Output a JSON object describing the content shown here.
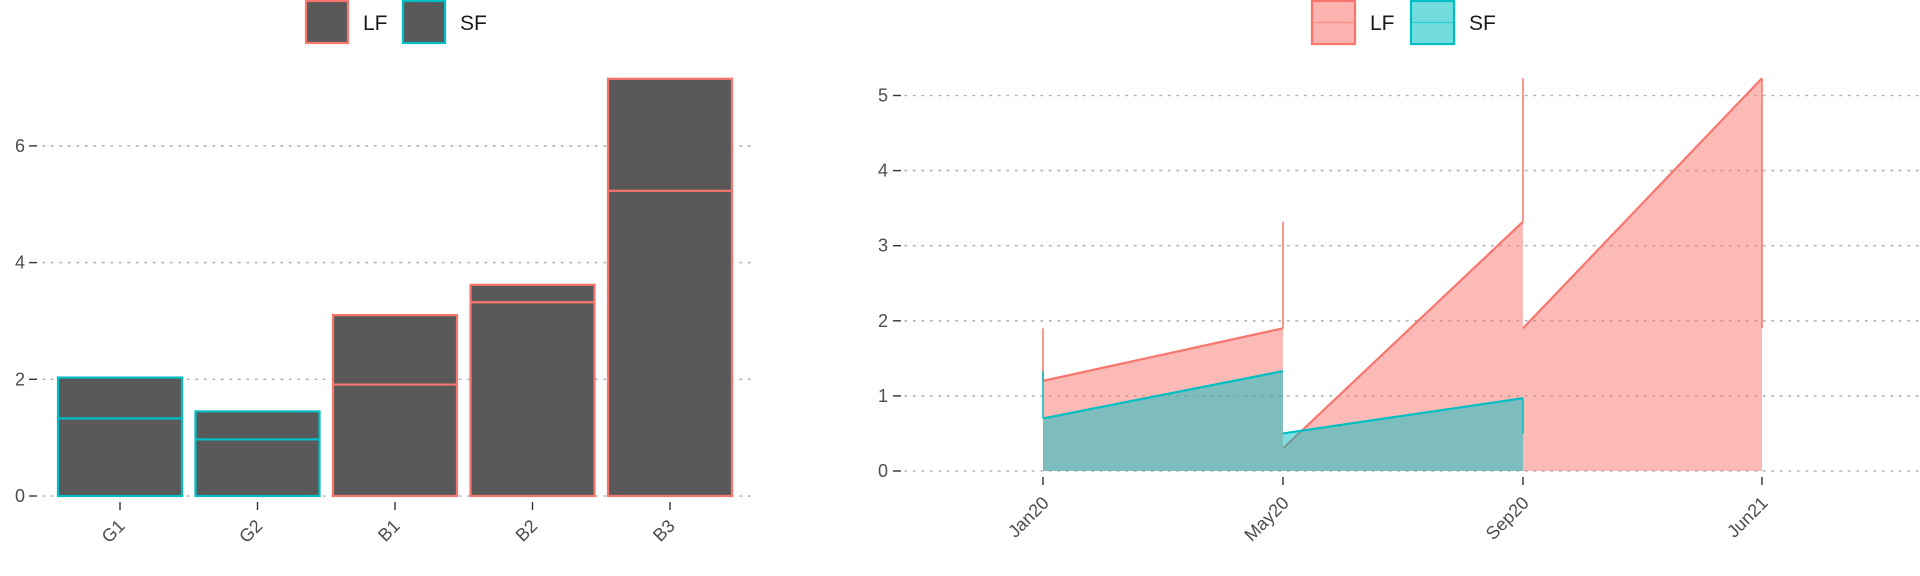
{
  "colors": {
    "LF": "#F8766D",
    "SF": "#00BFC4",
    "bar_fill": "#595959",
    "lf_area": "#F8766D",
    "sf_area": "#00BFC4"
  },
  "chart_data": [
    {
      "type": "bar",
      "title": "",
      "xlabel": "",
      "ylabel": "",
      "legend": {
        "position": "top",
        "entries": [
          "LF",
          "SF"
        ]
      },
      "categories": [
        "G1",
        "G2",
        "B1",
        "B2",
        "B3"
      ],
      "bar_totals": [
        2.03,
        1.45,
        3.1,
        3.62,
        7.15
      ],
      "bar_outline_series": [
        "SF",
        "SF",
        "LF",
        "LF",
        "LF"
      ],
      "inner_line_values": [
        1.33,
        0.97,
        1.91,
        3.32,
        5.23
      ],
      "yticks": [
        "0",
        "2",
        "4",
        "6"
      ],
      "ylim": [
        0,
        7.5
      ],
      "grid": "horizontal dotted"
    },
    {
      "type": "area",
      "title": "",
      "xlabel": "",
      "ylabel": "",
      "legend": {
        "position": "top",
        "entries": [
          "LF",
          "SF"
        ]
      },
      "xticks": [
        "Jan20",
        "May20",
        "Sep20",
        "Jun21"
      ],
      "yticks": [
        "0",
        "1",
        "2",
        "3",
        "4",
        "5"
      ],
      "ylim": [
        0,
        5.4
      ],
      "grid": "horizontal dotted",
      "series": [
        {
          "name": "LF",
          "segments": [
            {
              "x": [
                "Jan20",
                "May20"
              ],
              "y": [
                1.2,
                1.9
              ]
            },
            {
              "x": [
                "May20",
                "Sep20"
              ],
              "y": [
                0.3,
                3.32
              ]
            },
            {
              "x": [
                "Sep20",
                "Jun21"
              ],
              "y": [
                1.9,
                5.23
              ]
            }
          ],
          "spikes": [
            {
              "x": "Jan20",
              "from": 1.2,
              "to": 1.9
            },
            {
              "x": "May20",
              "from": 1.9,
              "to": 3.32
            },
            {
              "x": "Sep20",
              "from": 3.32,
              "to": 5.23
            },
            {
              "x": "Jun21",
              "from": 1.9,
              "to": 5.23
            }
          ]
        },
        {
          "name": "SF",
          "segments": [
            {
              "x": [
                "Jan20",
                "May20"
              ],
              "y": [
                0.7,
                1.33
              ]
            },
            {
              "x": [
                "May20",
                "Sep20"
              ],
              "y": [
                0.5,
                0.97
              ]
            }
          ],
          "spikes": [
            {
              "x": "Jan20",
              "from": 0.7,
              "to": 1.33
            },
            {
              "x": "Sep20",
              "from": 0.5,
              "to": 0.97
            }
          ]
        }
      ]
    }
  ]
}
